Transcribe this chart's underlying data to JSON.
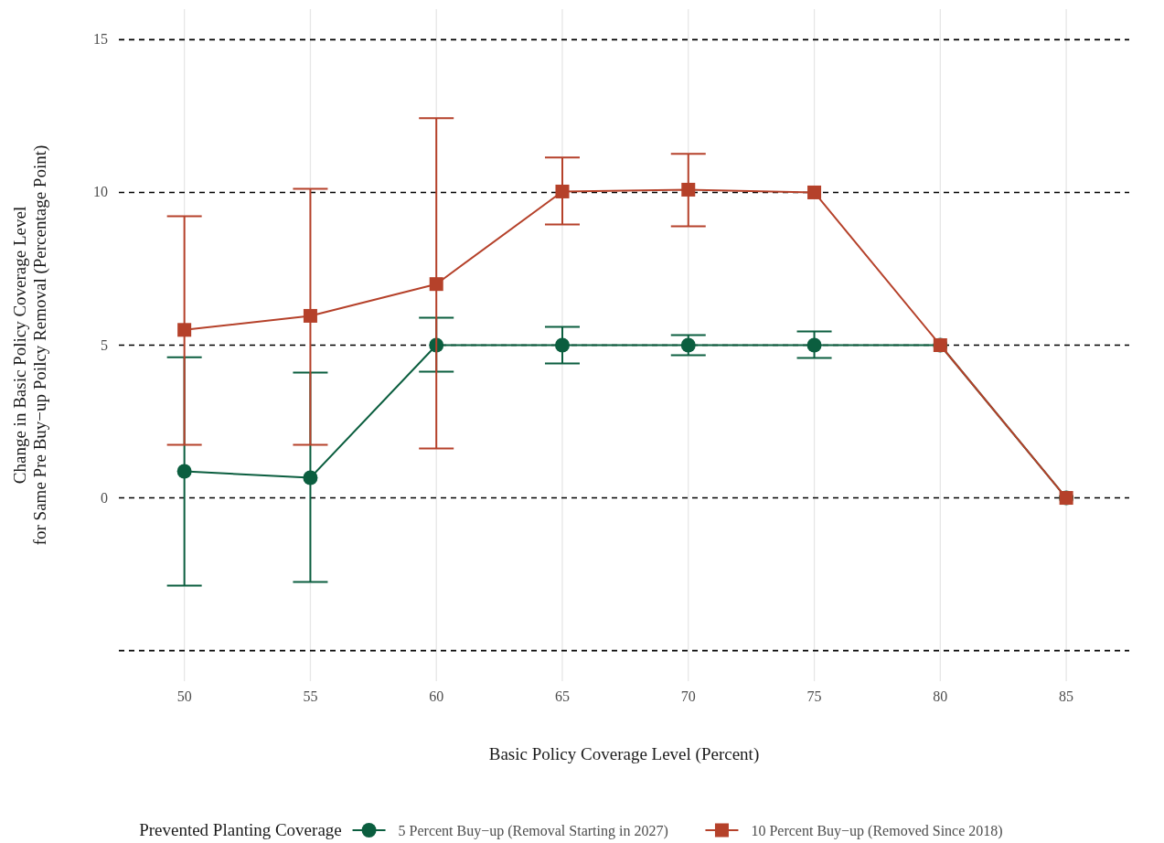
{
  "chart_data": {
    "type": "line",
    "xlabel": "Basic Policy Coverage Level (Percent)",
    "ylabel": "Change in Basic Policy Coverage Level\nfor Same Pre Buy−up Poilcy Removal (Percentage Point)",
    "legend_title": "Prevented Planting Coverage",
    "legend": "bottom",
    "grid": "x",
    "line_style": "solid",
    "x": [
      50,
      55,
      60,
      65,
      70,
      75,
      80,
      85
    ],
    "xlim": [
      47.4,
      87.5
    ],
    "xticks": [
      50,
      55,
      60,
      65,
      70,
      75,
      80,
      85
    ],
    "ylim": [
      -6,
      16
    ],
    "yticks": [
      0,
      5,
      10,
      15
    ],
    "ref_lines": [
      {
        "axis": "y",
        "value": -5,
        "color": "#000000",
        "line_style": "dashed"
      },
      {
        "axis": "y",
        "value": 0,
        "color": "#000000",
        "line_style": "dashed"
      },
      {
        "axis": "y",
        "value": 5,
        "color": "#000000",
        "line_style": "dashed"
      },
      {
        "axis": "y",
        "value": 10,
        "color": "#000000",
        "line_style": "dashed"
      },
      {
        "axis": "y",
        "value": 15,
        "color": "#000000",
        "line_style": "dashed"
      }
    ],
    "series": [
      {
        "name": "5 Percent Buy−up (Removal Starting in 2027)",
        "color": "#0b5e3f",
        "marker": "circle",
        "values": [
          0.87,
          0.66,
          5,
          5,
          5,
          5,
          5,
          0
        ],
        "errors": [
          [
            -2.87,
            4.6
          ],
          [
            -2.75,
            4.1
          ],
          [
            4.13,
            5.9
          ],
          [
            4.4,
            5.6
          ],
          [
            4.67,
            5.33
          ],
          [
            4.58,
            5.45
          ],
          null,
          null
        ]
      },
      {
        "name": "10 Percent Buy−up (Removed Since 2018)",
        "color": "#b5412a",
        "marker": "square",
        "values": [
          5.5,
          5.96,
          7.0,
          10.03,
          10.09,
          10,
          5,
          0
        ],
        "errors": [
          [
            1.74,
            9.22
          ],
          [
            1.74,
            10.12
          ],
          [
            1.62,
            12.43
          ],
          [
            8.95,
            11.14
          ],
          [
            8.89,
            11.26
          ],
          null,
          null,
          null
        ]
      }
    ]
  }
}
